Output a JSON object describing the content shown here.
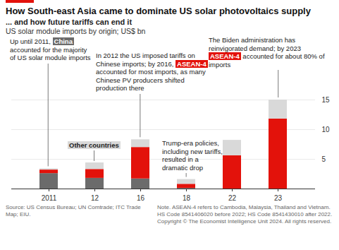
{
  "chart_data": {
    "type": "bar",
    "stacked": true,
    "title": "How South-east Asia came to dominate US solar photovoltaics supply",
    "subtitle": "... and how future tariffs can end it",
    "ylabel": "US solar module imports by origin; US$ bn",
    "categories": [
      "2011",
      "12",
      "16",
      "18",
      "22",
      "23"
    ],
    "series": [
      {
        "name": "China",
        "color": "#6b6b6b",
        "values": [
          2.6,
          1.8,
          1.7,
          0.1,
          0,
          0
        ]
      },
      {
        "name": "ASEAN-4",
        "color": "#e3120b",
        "values": [
          0.6,
          1.5,
          5.3,
          0.7,
          5.6,
          11.8
        ]
      },
      {
        "name": "Other countries",
        "color": "#d9d9d9",
        "values": [
          0.2,
          1.1,
          1.3,
          0.8,
          2.6,
          3.2
        ]
      }
    ],
    "ylim": [
      0,
      15
    ],
    "yticks": [
      5,
      10,
      15
    ],
    "grid": true,
    "annotations": [
      {
        "text": "Up until 2011, China accounted for the majority of US solar module imports",
        "category": "2011"
      },
      {
        "text": "In 2012 the US imposed tariffs on Chinese imports; by 2016, ASEAN-4 accounted for most imports, as many Chinese PV producers shifted production there",
        "category": "16"
      },
      {
        "text": "Trump-era policies, including new tariffs, resulted in a dramatic drop",
        "category": "18"
      },
      {
        "text": "The Biden administration has reinvigorated demand; by 2023 ASEAN-4 accounted for about 80% of imports",
        "category": "23"
      }
    ],
    "source": "Source: US Census Bureau; UN Comtrade; ITC Trade Map; EIU.",
    "note": "Note. ASEAN-4 refers to Cambodia, Malaysia, Thailand and Vietnam. HS Code 8541406020 before 2022; HS Code 8541430010 after 2022.",
    "copyright": "Copyright © The Economist Intelligence Unit 2024. All rights reserved."
  }
}
